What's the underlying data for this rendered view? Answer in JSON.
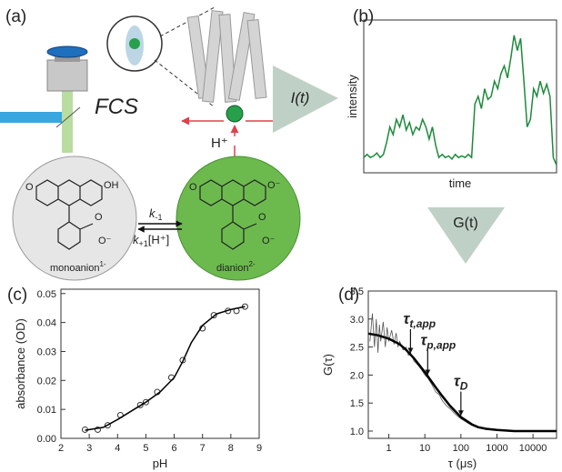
{
  "panel_a": {
    "label": "(a)",
    "technique": "FCS",
    "signal": "I(t)",
    "proton": "H⁺",
    "rate_reverse": {
      "symbol": "k",
      "sub": "-1"
    },
    "rate_forward": {
      "symbol": "k",
      "sub": "+1",
      "rest": "[H⁺]"
    },
    "left_species": {
      "name": "monoanion",
      "charge": "1-",
      "atoms": [
        "O",
        "OH",
        "O",
        "O⁻"
      ]
    },
    "right_species": {
      "name": "dianion",
      "charge": "2-",
      "atoms": [
        "O",
        "O⁻",
        "O",
        "O⁻"
      ]
    }
  },
  "correlation_label": "G(t)",
  "chart_data": [
    {
      "type": "line",
      "label": "(b)",
      "ylabel": "intensity",
      "xlabel": "time",
      "ylim": [
        0,
        1
      ],
      "color": "#1e8a3c",
      "values": [
        0.1,
        0.12,
        0.1,
        0.11,
        0.13,
        0.1,
        0.12,
        0.2,
        0.3,
        0.25,
        0.35,
        0.3,
        0.38,
        0.28,
        0.33,
        0.25,
        0.3,
        0.28,
        0.35,
        0.3,
        0.22,
        0.3,
        0.18,
        0.1,
        0.12,
        0.1,
        0.11,
        0.09,
        0.12,
        0.1,
        0.11,
        0.1,
        0.12,
        0.1,
        0.45,
        0.5,
        0.42,
        0.55,
        0.48,
        0.5,
        0.6,
        0.55,
        0.65,
        0.7,
        0.62,
        0.75,
        0.9,
        0.8,
        0.88,
        0.6,
        0.3,
        0.35,
        0.55,
        0.5,
        0.6,
        0.52,
        0.58,
        0.5,
        0.1,
        0.05
      ]
    },
    {
      "type": "scatter",
      "label": "(c)",
      "xlabel": "pH",
      "ylabel": "absorbance (OD)",
      "xlim": [
        2,
        9
      ],
      "ylim": [
        0,
        0.0515
      ],
      "xticks": [
        2,
        3,
        4,
        5,
        6,
        7,
        8,
        9
      ],
      "yticks": [
        {
          "value": 0,
          "label": "0.00"
        },
        {
          "value": 0.01,
          "label": "0.01"
        },
        {
          "value": 0.02,
          "label": "0.02"
        },
        {
          "value": 0.03,
          "label": "0.03"
        },
        {
          "value": 0.04,
          "label": "0.04"
        },
        {
          "value": 0.05,
          "label": "0.05"
        }
      ],
      "series": [
        {
          "style": "markers",
          "color": "#333333",
          "x": [
            2.85,
            3.3,
            3.65,
            4.1,
            4.8,
            5.0,
            5.4,
            5.9,
            6.3,
            7.0,
            7.4,
            7.9,
            8.2,
            8.5
          ],
          "values": [
            0.003,
            0.003,
            0.0045,
            0.008,
            0.0115,
            0.0125,
            0.016,
            0.021,
            0.027,
            0.038,
            0.0425,
            0.044,
            0.044,
            0.0455
          ]
        },
        {
          "style": "line",
          "color": "#000000",
          "x": [
            2.85,
            3.5,
            4,
            4.5,
            5,
            5.5,
            6,
            6.3,
            6.6,
            7,
            7.5,
            8,
            8.5
          ],
          "values": [
            0.0028,
            0.0038,
            0.0065,
            0.0095,
            0.0125,
            0.016,
            0.021,
            0.0265,
            0.033,
            0.039,
            0.043,
            0.0445,
            0.0455
          ]
        }
      ]
    },
    {
      "type": "line",
      "label": "(d)",
      "xlabel": "τ (μs)",
      "ylabel": "G(τ)",
      "xscale": "log",
      "xlim": [
        0.27,
        45000
      ],
      "ylim": [
        0.87,
        3.5
      ],
      "xticks": [
        1,
        10,
        100,
        1000,
        10000
      ],
      "yticks": [
        {
          "value": 1,
          "label": "1.0"
        },
        {
          "value": 1.5,
          "label": "1.5"
        },
        {
          "value": 2,
          "label": "2.0"
        },
        {
          "value": 2.5,
          "label": "2.5"
        },
        {
          "value": 3,
          "label": "3.0"
        },
        {
          "value": 3.5,
          "label": "3.5"
        }
      ],
      "series": [
        {
          "style": "line",
          "color": "#555555",
          "x": [
            0.3,
            0.35,
            0.4,
            0.45,
            0.5,
            0.55,
            0.6,
            0.7,
            0.8,
            0.9,
            1,
            1.2,
            1.4,
            1.6,
            1.8,
            2,
            2.5,
            3,
            3.5,
            4,
            5,
            6,
            7,
            8,
            10,
            12,
            15,
            20,
            25,
            30,
            40,
            50,
            70,
            100,
            150,
            200,
            300,
            500,
            1000,
            2000,
            5000,
            10000,
            20000,
            45000
          ],
          "values": [
            2.6,
            3.1,
            2.5,
            3.0,
            2.4,
            2.9,
            2.6,
            2.95,
            2.5,
            2.85,
            2.6,
            2.8,
            2.55,
            2.75,
            2.5,
            2.6,
            2.45,
            2.5,
            2.35,
            2.4,
            2.25,
            2.2,
            2.15,
            2.1,
            2.0,
            1.95,
            1.85,
            1.7,
            1.65,
            1.55,
            1.45,
            1.4,
            1.3,
            1.22,
            1.15,
            1.1,
            1.06,
            1.03,
            1.01,
            1.0,
            1.0,
            1.0,
            1.0,
            1.0
          ]
        },
        {
          "style": "fit",
          "color": "#000000",
          "x": [
            0.27,
            0.5,
            1,
            2,
            3,
            5,
            10,
            20,
            30,
            50,
            100,
            200,
            300,
            500,
            1000,
            3000,
            10000,
            45000
          ],
          "values": [
            2.74,
            2.71,
            2.65,
            2.55,
            2.45,
            2.3,
            2.05,
            1.78,
            1.63,
            1.45,
            1.25,
            1.12,
            1.07,
            1.04,
            1.02,
            1.0,
            1.0,
            1.0
          ]
        }
      ],
      "annotations": [
        {
          "symbol": "τ",
          "sub": "t,app",
          "tau": 4
        },
        {
          "symbol": "τ",
          "sub": "p,app",
          "tau": 12
        },
        {
          "symbol": "τ",
          "sub": "D",
          "tau": 100
        }
      ]
    }
  ]
}
